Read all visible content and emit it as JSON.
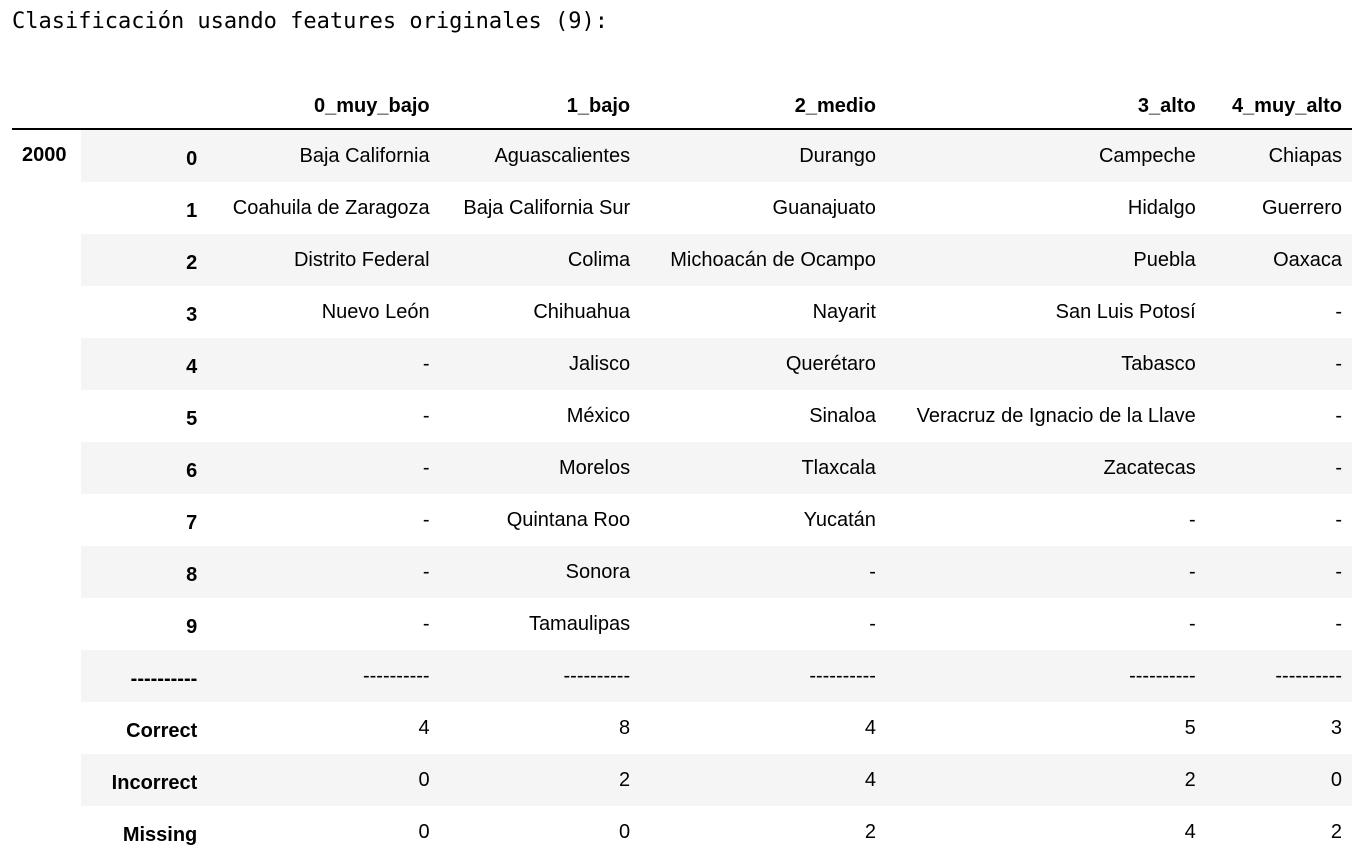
{
  "title": "Clasificación usando features originales (9):",
  "table": {
    "columns": [
      "0_muy_bajo",
      "1_bajo",
      "2_medio",
      "3_alto",
      "4_muy_alto"
    ],
    "outer_index": "2000",
    "rows": [
      {
        "index": "0",
        "cells": [
          "Baja California",
          "Aguascalientes",
          "Durango",
          "Campeche",
          "Chiapas"
        ]
      },
      {
        "index": "1",
        "cells": [
          "Coahuila de Zaragoza",
          "Baja California Sur",
          "Guanajuato",
          "Hidalgo",
          "Guerrero"
        ]
      },
      {
        "index": "2",
        "cells": [
          "Distrito Federal",
          "Colima",
          "Michoacán de Ocampo",
          "Puebla",
          "Oaxaca"
        ]
      },
      {
        "index": "3",
        "cells": [
          "Nuevo León",
          "Chihuahua",
          "Nayarit",
          "San Luis Potosí",
          "-"
        ]
      },
      {
        "index": "4",
        "cells": [
          "-",
          "Jalisco",
          "Querétaro",
          "Tabasco",
          "-"
        ]
      },
      {
        "index": "5",
        "cells": [
          "-",
          "México",
          "Sinaloa",
          "Veracruz de Ignacio de la Llave",
          "-"
        ]
      },
      {
        "index": "6",
        "cells": [
          "-",
          "Morelos",
          "Tlaxcala",
          "Zacatecas",
          "-"
        ]
      },
      {
        "index": "7",
        "cells": [
          "-",
          "Quintana Roo",
          "Yucatán",
          "-",
          "-"
        ]
      },
      {
        "index": "8",
        "cells": [
          "-",
          "Sonora",
          "-",
          "-",
          "-"
        ]
      },
      {
        "index": "9",
        "cells": [
          "-",
          "Tamaulipas",
          "-",
          "-",
          "-"
        ]
      },
      {
        "index": "----------",
        "cells": [
          "----------",
          "----------",
          "----------",
          "----------",
          "----------"
        ]
      },
      {
        "index": "Correct",
        "cells": [
          "4",
          "8",
          "4",
          "5",
          "3"
        ]
      },
      {
        "index": "Incorrect",
        "cells": [
          "0",
          "2",
          "4",
          "2",
          "0"
        ]
      },
      {
        "index": "Missing",
        "cells": [
          "0",
          "0",
          "2",
          "4",
          "2"
        ]
      }
    ]
  }
}
